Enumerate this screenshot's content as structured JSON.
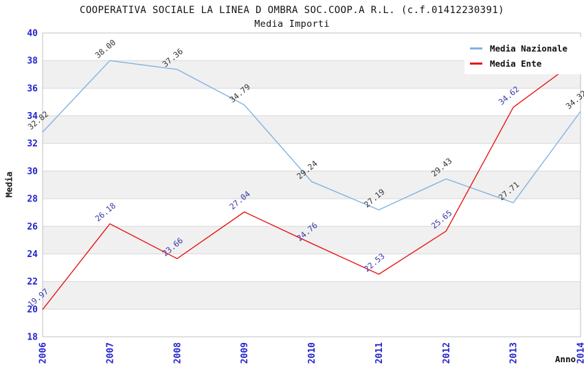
{
  "chart_data": {
    "type": "line",
    "title": "COOPERATIVA SOCIALE LA LINEA D OMBRA SOC.COOP.A R.L. (c.f.01412230391)",
    "subtitle": "Media Importi",
    "xlabel": "Anno",
    "ylabel": "Media",
    "categories": [
      "2006",
      "2007",
      "2008",
      "2009",
      "2010",
      "2011",
      "2012",
      "2013",
      "2014"
    ],
    "series": [
      {
        "name": "Media Nazionale",
        "color": "#82b1e2",
        "label_color": "#333333",
        "values": [
          32.82,
          38.0,
          37.36,
          34.79,
          29.24,
          27.19,
          29.43,
          27.71,
          34.32
        ]
      },
      {
        "name": "Media Ente",
        "color": "#e81515",
        "label_color": "#3838a8",
        "values": [
          19.97,
          26.18,
          23.66,
          27.04,
          24.76,
          22.53,
          25.65,
          34.62,
          38.21
        ]
      }
    ],
    "ylim": [
      18,
      40
    ],
    "ytick_step": 2,
    "grid": "horizontal",
    "legend_position": "top-right",
    "show_point_labels": true,
    "point_label_decimals": 2,
    "colors": {
      "band_fill": "#f0f0f0",
      "grid_line": "#d8d8d8",
      "plot_border": "#c0c0c0",
      "tick_label": "#2323cf",
      "title_text": "#111111"
    }
  }
}
